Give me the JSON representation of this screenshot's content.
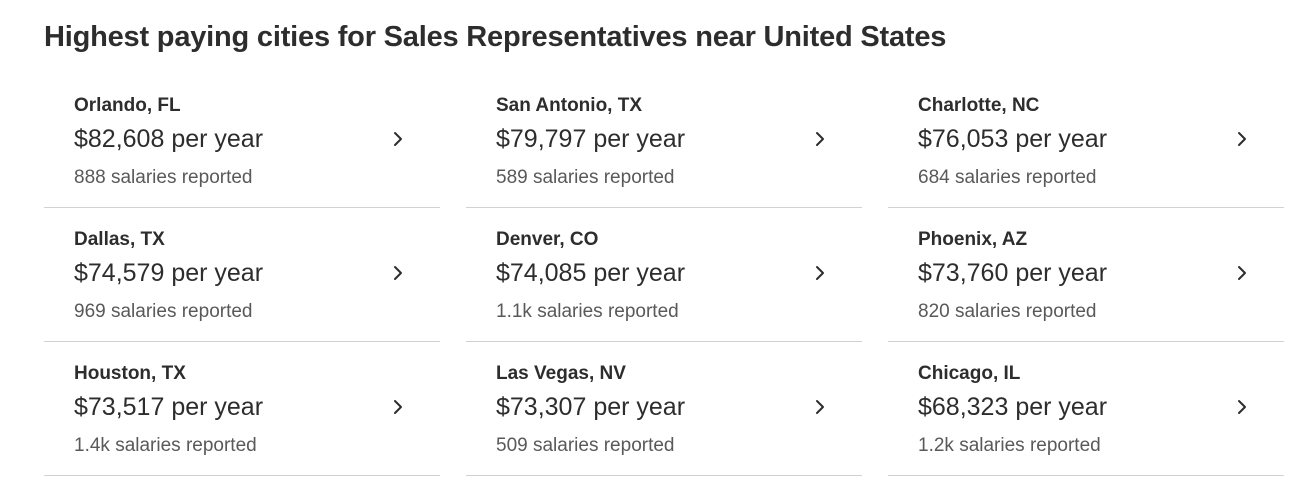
{
  "title": "Highest paying cities for Sales Representatives near United States",
  "icon": "chevron-right-icon",
  "cities": [
    {
      "name": "Orlando, FL",
      "salary": "$82,608 per year",
      "reported": "888 salaries reported"
    },
    {
      "name": "San Antonio, TX",
      "salary": "$79,797 per year",
      "reported": "589 salaries reported"
    },
    {
      "name": "Charlotte, NC",
      "salary": "$76,053 per year",
      "reported": "684 salaries reported"
    },
    {
      "name": "Dallas, TX",
      "salary": "$74,579 per year",
      "reported": "969 salaries reported"
    },
    {
      "name": "Denver, CO",
      "salary": "$74,085 per year",
      "reported": "1.1k salaries reported"
    },
    {
      "name": "Phoenix, AZ",
      "salary": "$73,760 per year",
      "reported": "820 salaries reported"
    },
    {
      "name": "Houston, TX",
      "salary": "$73,517 per year",
      "reported": "1.4k salaries reported"
    },
    {
      "name": "Las Vegas, NV",
      "salary": "$73,307 per year",
      "reported": "509 salaries reported"
    },
    {
      "name": "Chicago, IL",
      "salary": "$68,323 per year",
      "reported": "1.2k salaries reported"
    }
  ]
}
